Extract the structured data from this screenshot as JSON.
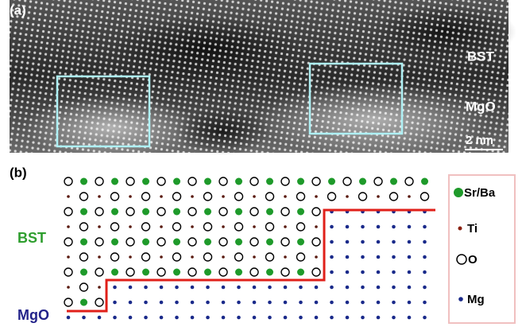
{
  "panel_a": {
    "label": "(a)",
    "layer_labels": [
      "BST",
      "MgO"
    ],
    "scale_bar": "2 nm"
  },
  "panel_b": {
    "label": "(b)",
    "layer_labels": [
      "BST",
      "MgO"
    ],
    "legend": [
      "Sr/Ba",
      "Ti",
      "O",
      "Mg"
    ]
  }
}
